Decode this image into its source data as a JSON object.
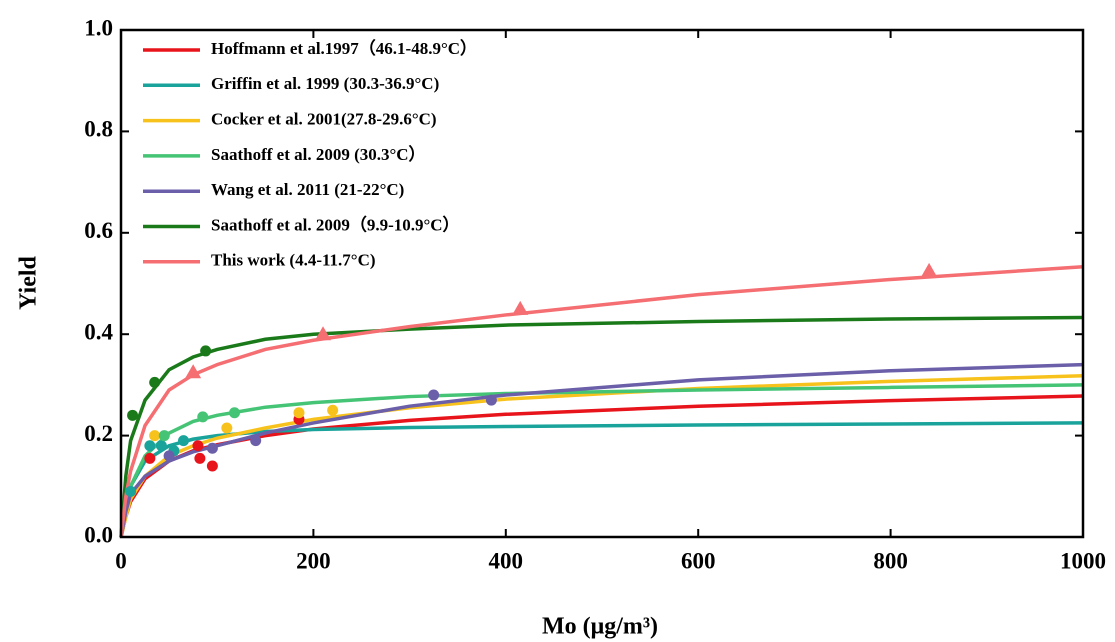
{
  "chart_data": {
    "type": "line",
    "x_label": "Mo (μg/m³)",
    "y_label": "Yield",
    "xlim": [
      0,
      1000
    ],
    "ylim": [
      0,
      1
    ],
    "xticks": [
      0,
      200,
      400,
      600,
      800,
      1000
    ],
    "yticks": [
      {
        "value": 0,
        "label": "0.0"
      },
      0.2,
      0.4,
      0.6,
      0.8,
      {
        "value": 1,
        "label": "1.0"
      }
    ],
    "legend": "upper left",
    "x": [
      0,
      5,
      10,
      25,
      50,
      75,
      100,
      150,
      200,
      300,
      400,
      600,
      800,
      1000
    ],
    "series": [
      {
        "name": "Hoffmann et al.1997（46.1-48.9°C）",
        "color": "#e8141b",
        "marker": "circle",
        "values": [
          0,
          0.04,
          0.07,
          0.115,
          0.15,
          0.17,
          0.182,
          0.2,
          0.213,
          0.23,
          0.242,
          0.258,
          0.269,
          0.278
        ],
        "points_x": [
          30,
          80,
          82,
          95,
          185
        ],
        "points_y": [
          0.155,
          0.18,
          0.155,
          0.14,
          0.232
        ]
      },
      {
        "name": "Griffin et al. 1999 (30.3-36.9°C)",
        "color": "#1aa39b",
        "marker": "circle",
        "values": [
          0,
          0.06,
          0.1,
          0.15,
          0.18,
          0.193,
          0.2,
          0.208,
          0.212,
          0.216,
          0.218,
          0.221,
          0.223,
          0.225
        ],
        "points_x": [
          10,
          30,
          42,
          55,
          65
        ],
        "points_y": [
          0.09,
          0.18,
          0.18,
          0.17,
          0.19
        ]
      },
      {
        "name": "Cocker et al. 2001(27.8-29.6°C)",
        "color": "#f8c21c",
        "marker": "circle",
        "values": [
          0,
          0.04,
          0.075,
          0.12,
          0.16,
          0.18,
          0.195,
          0.215,
          0.232,
          0.255,
          0.272,
          0.293,
          0.307,
          0.318
        ],
        "points_x": [
          35,
          110,
          185,
          220
        ],
        "points_y": [
          0.2,
          0.215,
          0.245,
          0.25
        ]
      },
      {
        "name": "Saathoff et al. 2009 (30.3°C）",
        "color": "#45c476",
        "marker": "circle",
        "values": [
          0,
          0.06,
          0.1,
          0.16,
          0.205,
          0.228,
          0.24,
          0.256,
          0.265,
          0.277,
          0.283,
          0.29,
          0.295,
          0.3
        ],
        "points_x": [
          45,
          85,
          118
        ],
        "points_y": [
          0.2,
          0.237,
          0.245
        ]
      },
      {
        "name": "Wang et al. 2011 (21-22°C)",
        "color": "#6a5fa8",
        "marker": "circle",
        "values": [
          0,
          0.05,
          0.085,
          0.12,
          0.15,
          0.168,
          0.18,
          0.205,
          0.225,
          0.258,
          0.28,
          0.31,
          0.328,
          0.34
        ],
        "points_x": [
          50,
          95,
          140,
          325,
          385
        ],
        "points_y": [
          0.16,
          0.175,
          0.19,
          0.28,
          0.27
        ]
      },
      {
        "name": "Saathoff et al. 2009（9.9-10.9°C）",
        "color": "#1a7a1a",
        "marker": "circle",
        "values": [
          0,
          0.12,
          0.19,
          0.27,
          0.33,
          0.355,
          0.37,
          0.39,
          0.4,
          0.41,
          0.418,
          0.425,
          0.43,
          0.433
        ],
        "points_x": [
          12,
          35,
          88
        ],
        "points_y": [
          0.24,
          0.305,
          0.367
        ]
      },
      {
        "name": "This work (4.4-11.7°C)",
        "color": "#f46e72",
        "marker": "triangle",
        "values": [
          0,
          0.08,
          0.13,
          0.22,
          0.29,
          0.32,
          0.34,
          0.37,
          0.388,
          0.415,
          0.438,
          0.478,
          0.508,
          0.533
        ],
        "points_x": [
          75,
          210,
          415,
          840
        ],
        "points_y": [
          0.325,
          0.4,
          0.45,
          0.525
        ]
      }
    ]
  }
}
